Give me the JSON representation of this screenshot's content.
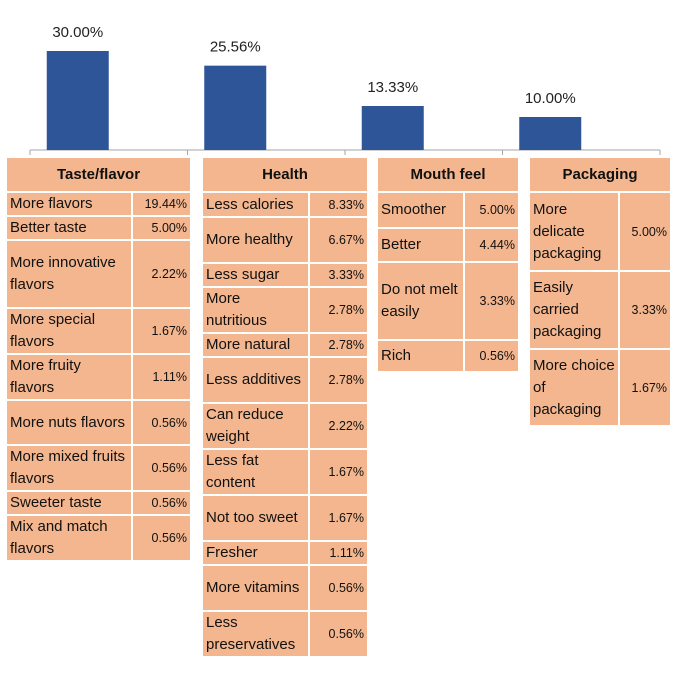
{
  "chart_data": {
    "type": "bar",
    "categories": [
      "Taste/flavor",
      "Health",
      "Mouth feel",
      "Packaging"
    ],
    "values": [
      30.0,
      25.56,
      13.33,
      10.0
    ],
    "value_labels": [
      "30.00%",
      "25.56%",
      "13.33%",
      "10.00%"
    ],
    "bar_color": "#2e5597",
    "axis_color": "#a6a6a6",
    "ylim": [
      0,
      40
    ],
    "grid": false,
    "legend": "none"
  },
  "tables": [
    {
      "header": "Taste/flavor",
      "rows": [
        {
          "label": "More flavors",
          "value": "19.44%"
        },
        {
          "label": "Better taste",
          "value": "5.00%"
        },
        {
          "label": "More innovative flavors",
          "value": "2.22%"
        },
        {
          "label": "More special flavors",
          "value": "1.67%"
        },
        {
          "label": "More fruity flavors",
          "value": "1.11%"
        },
        {
          "label": "More nuts flavors",
          "value": "0.56%"
        },
        {
          "label": "More mixed fruits flavors",
          "value": "0.56%"
        },
        {
          "label": "Sweeter taste",
          "value": "0.56%"
        },
        {
          "label": "Mix and match flavors",
          "value": "0.56%"
        }
      ]
    },
    {
      "header": "Health",
      "rows": [
        {
          "label": "Less calories",
          "value": "8.33%"
        },
        {
          "label": "More healthy",
          "value": "6.67%"
        },
        {
          "label": "Less sugar",
          "value": "3.33%"
        },
        {
          "label": "More nutritious",
          "value": "2.78%"
        },
        {
          "label": "More natural",
          "value": "2.78%"
        },
        {
          "label": "Less additives",
          "value": "2.78%"
        },
        {
          "label": "Can reduce weight",
          "value": "2.22%"
        },
        {
          "label": "Less fat content",
          "value": "1.67%"
        },
        {
          "label": "Not too sweet",
          "value": "1.67%"
        },
        {
          "label": "Fresher",
          "value": "1.11%"
        },
        {
          "label": "More vitamins",
          "value": "0.56%"
        },
        {
          "label": "Less preservatives",
          "value": "0.56%"
        }
      ]
    },
    {
      "header": "Mouth feel",
      "rows": [
        {
          "label": "Smoother",
          "value": "5.00%"
        },
        {
          "label": "Better",
          "value": "4.44%"
        },
        {
          "label": "Do not melt easily",
          "value": "3.33%"
        },
        {
          "label": "Rich",
          "value": "0.56%"
        }
      ]
    },
    {
      "header": "Packaging",
      "rows": [
        {
          "label": "More delicate packaging",
          "value": "5.00%"
        },
        {
          "label": "Easily carried packaging",
          "value": "3.33%"
        },
        {
          "label": "More choice of packaging",
          "value": "1.67%"
        }
      ]
    }
  ]
}
